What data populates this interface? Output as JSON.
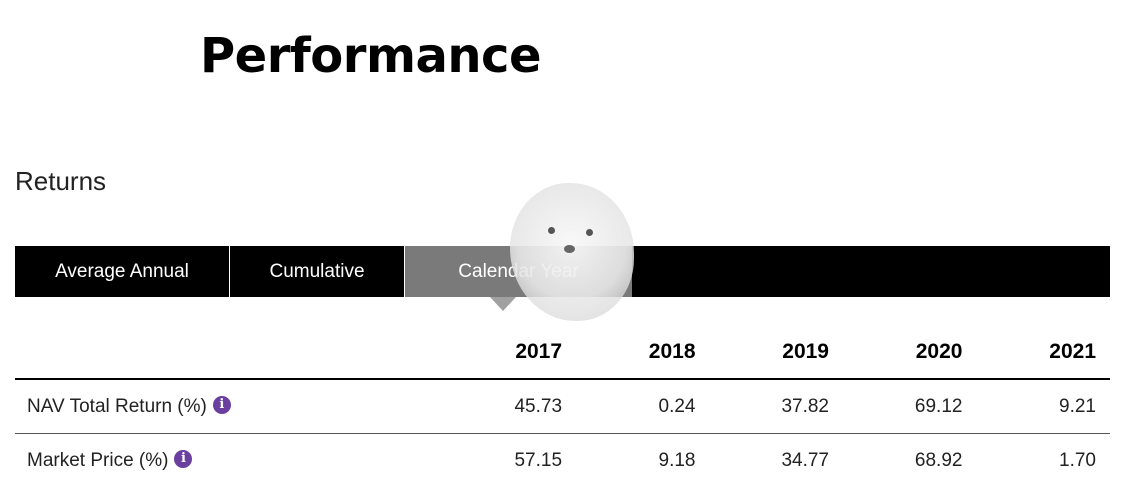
{
  "page": {
    "title": "Performance"
  },
  "returns": {
    "title": "Returns",
    "tabs": [
      {
        "label": "Average Annual"
      },
      {
        "label": "Cumulative"
      },
      {
        "label": "Calendar Year"
      }
    ],
    "table": {
      "columns": [
        "2017",
        "2018",
        "2019",
        "2020",
        "2021"
      ],
      "rows": [
        {
          "label": "NAV Total Return (%)",
          "info_icon": "info-icon",
          "values": [
            "45.73",
            "0.24",
            "37.82",
            "69.12",
            "9.21"
          ]
        },
        {
          "label": "Market Price (%)",
          "info_icon": "info-icon",
          "values": [
            "57.15",
            "9.18",
            "34.77",
            "68.92",
            "1.70"
          ]
        }
      ]
    }
  },
  "colors": {
    "tab_bar": "#000000",
    "active_tab": "#7a7a7a",
    "info_icon": "#6b3fa0"
  }
}
